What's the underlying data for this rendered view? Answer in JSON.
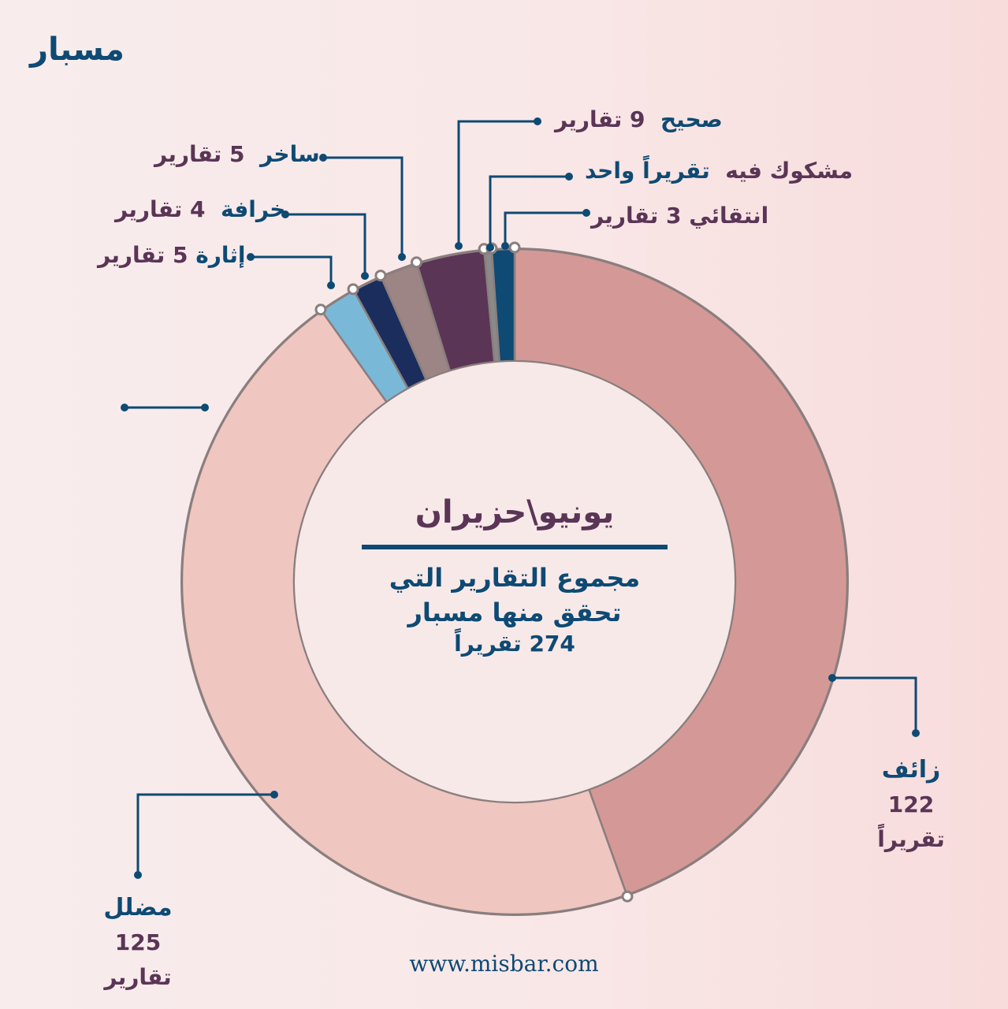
{
  "logo": "مسبار",
  "center": {
    "month": "يونيو\\حزيران",
    "description_line1": "مجموع التقارير التي",
    "description_line2": "تحقق منها مسبار",
    "total": "274 تقريراً"
  },
  "labels": {
    "fake": {
      "category": "زائف",
      "count": "122 تقريراً"
    },
    "misleading": {
      "category": "مضلل",
      "count": "125 تقارير"
    },
    "provocative": {
      "category": "إثارة",
      "count": "5 تقارير"
    },
    "myth": {
      "category": "خرافة",
      "count": "4 تقارير"
    },
    "satire": {
      "category": "ساخر",
      "count": "5 تقارير"
    },
    "true": {
      "category": "صحيح",
      "count": "9 تقارير"
    },
    "questionable": {
      "category": "مشكوك فيه",
      "count": "تقريراً واحد"
    },
    "selective": {
      "category": "انتقائي",
      "count": "3 تقارير"
    }
  },
  "footer_url": "www.misbar.com",
  "chart_data": {
    "type": "pie",
    "subtype": "donut",
    "title": "يونيو\\حزيران — مجموع التقارير التي تحقق منها مسبار 274 تقريراً",
    "categories": [
      "زائف",
      "مضلل",
      "إثارة",
      "خرافة",
      "ساخر",
      "صحيح",
      "مشكوك فيه",
      "انتقائي"
    ],
    "values": [
      122,
      125,
      5,
      4,
      5,
      9,
      1,
      3
    ],
    "colors": [
      "#d49996",
      "#f0c6c0",
      "#7ab8d8",
      "#1a2d5c",
      "#9c8584",
      "#5a3556",
      "#8a8a88",
      "#0e4a73"
    ],
    "total": 274,
    "start_angle_deg": 0,
    "direction": "clockwise",
    "legend": "callout labels"
  }
}
